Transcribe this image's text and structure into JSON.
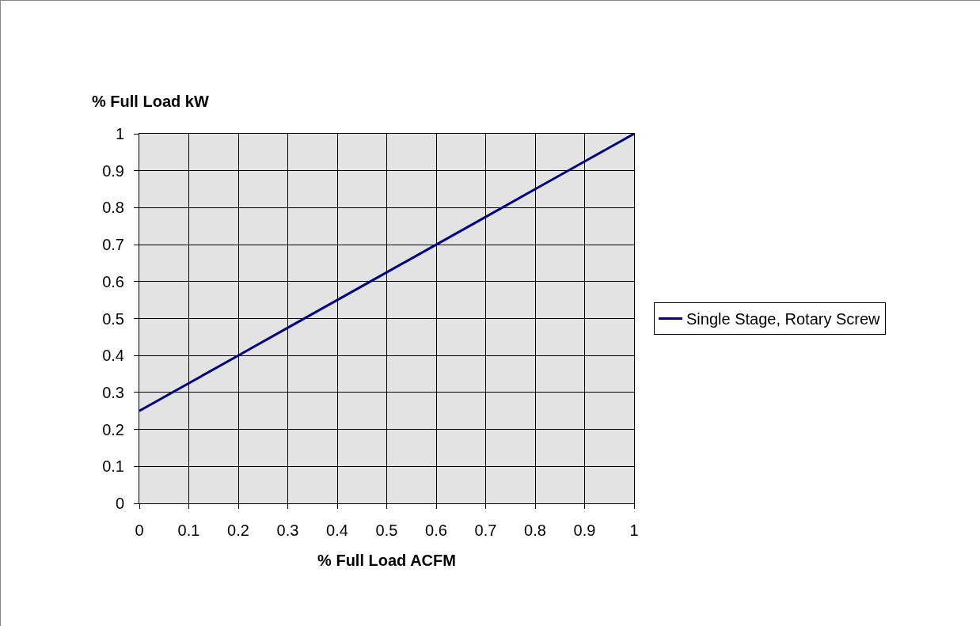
{
  "chart_data": {
    "type": "line",
    "xlabel": "% Full Load ACFM",
    "ylabel": "% Full Load kW",
    "x": [
      0,
      0.1,
      0.2,
      0.3,
      0.4,
      0.5,
      0.6,
      0.7,
      0.8,
      0.9,
      1
    ],
    "series": [
      {
        "name": "Single Stage, Rotary Screw",
        "color": "#000080",
        "values": [
          0.25,
          0.325,
          0.4,
          0.475,
          0.55,
          0.625,
          0.7,
          0.775,
          0.85,
          0.925,
          1
        ]
      }
    ],
    "xlim": [
      0,
      1
    ],
    "xticks": [
      0,
      0.1,
      0.2,
      0.3,
      0.4,
      0.5,
      0.6,
      0.7,
      0.8,
      0.9,
      1
    ],
    "ylim": [
      0,
      1
    ],
    "yticks": [
      0,
      0.1,
      0.2,
      0.3,
      0.4,
      0.5,
      0.6,
      0.7,
      0.8,
      0.9,
      1
    ],
    "grid": true,
    "legend": "right",
    "marker": "none",
    "line_style": "solid"
  }
}
